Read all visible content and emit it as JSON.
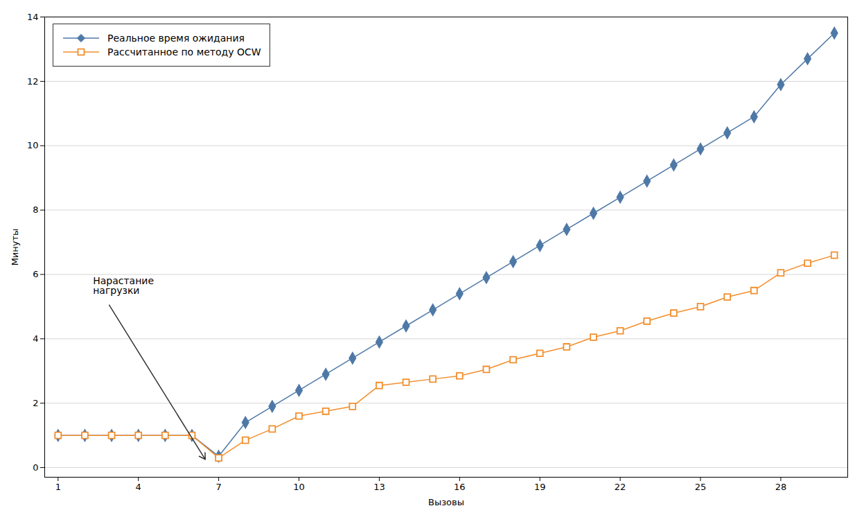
{
  "chart_data": {
    "type": "line",
    "xlabel": "Вызовы",
    "ylabel": "Минуты",
    "xlim": [
      0.5,
      30.5
    ],
    "ylim": [
      -0.3,
      14
    ],
    "xticks": [
      1,
      4,
      7,
      10,
      13,
      16,
      19,
      22,
      25,
      28
    ],
    "yticks": [
      0,
      2,
      4,
      6,
      8,
      10,
      12,
      14
    ],
    "grid": "y",
    "legend": "upper left",
    "x": [
      1,
      2,
      3,
      4,
      5,
      6,
      7,
      8,
      9,
      10,
      11,
      12,
      13,
      14,
      15,
      16,
      17,
      18,
      19,
      20,
      21,
      22,
      23,
      24,
      25,
      26,
      27,
      28,
      29,
      30
    ],
    "series": [
      {
        "name": "Реальное время ожидания",
        "marker": "diamond",
        "values": [
          1.0,
          1.0,
          1.0,
          1.0,
          1.0,
          1.0,
          0.35,
          1.4,
          1.9,
          2.4,
          2.9,
          3.4,
          3.9,
          4.4,
          4.9,
          5.4,
          5.9,
          6.4,
          6.9,
          7.4,
          7.9,
          8.4,
          8.9,
          9.4,
          9.9,
          10.4,
          10.9,
          11.9,
          12.7,
          13.5
        ]
      },
      {
        "name": "Рассчитанное по методу OCW",
        "marker": "open_square",
        "values": [
          1.0,
          1.0,
          1.0,
          1.0,
          1.0,
          1.0,
          0.3,
          0.85,
          1.2,
          1.6,
          1.75,
          1.9,
          2.55,
          2.65,
          2.75,
          2.85,
          3.05,
          3.35,
          3.55,
          3.75,
          4.05,
          4.25,
          4.55,
          4.8,
          5.0,
          5.3,
          5.5,
          6.05,
          6.35,
          6.6
        ]
      }
    ],
    "annotations": [
      {
        "text": "Нарастание\nнагрузки",
        "x": 2.2,
        "y": 6.0,
        "arrow_to": [
          6.5,
          0.25
        ]
      }
    ]
  }
}
